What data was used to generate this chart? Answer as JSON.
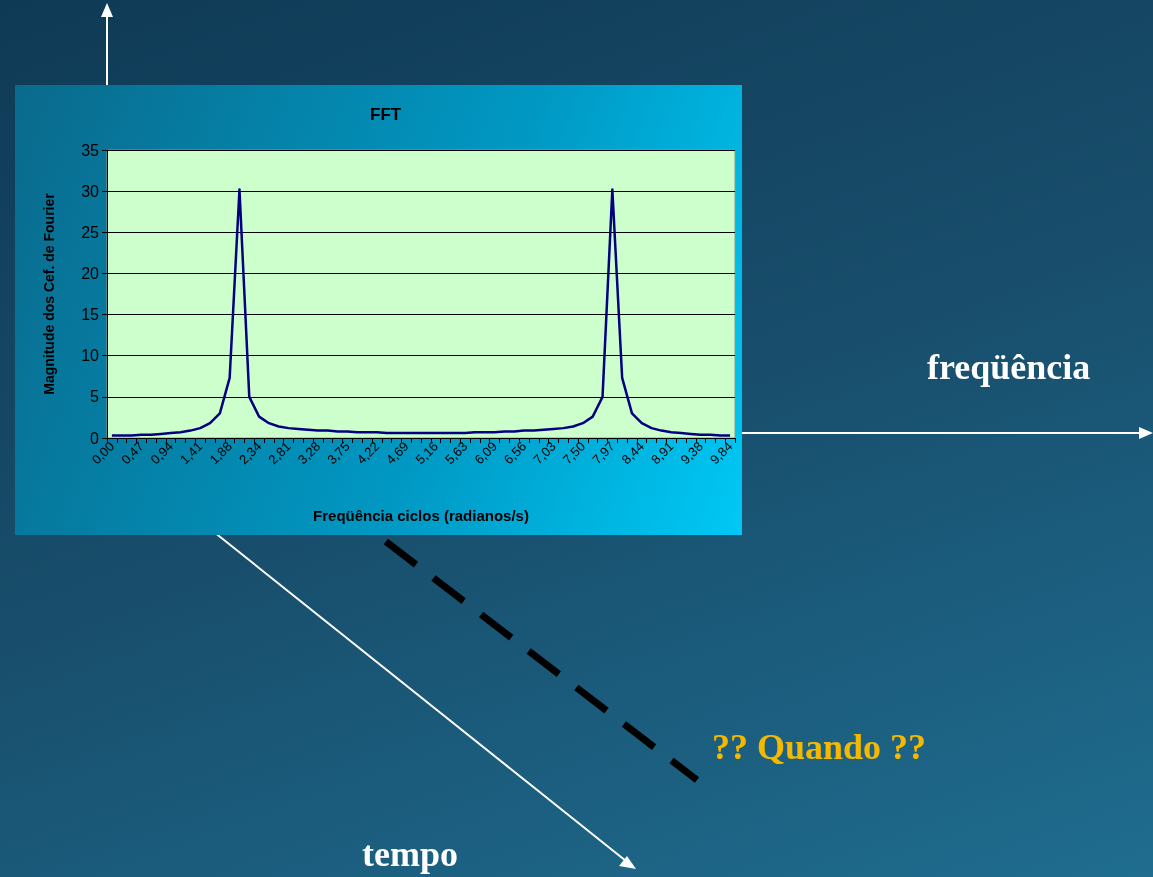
{
  "chart_data": {
    "type": "line",
    "title": "FFT",
    "xlabel": "Freqüência ciclos (radianos/s)",
    "ylabel": "Magnitude dos Cef. de Fourier",
    "categories": [
      "0,00",
      null,
      null,
      "0,47",
      null,
      null,
      "0,94",
      null,
      null,
      "1,41",
      null,
      null,
      "1,88",
      null,
      null,
      "2,34",
      null,
      null,
      "2,81",
      null,
      null,
      "3,28",
      null,
      null,
      "3,75",
      null,
      null,
      "4,22",
      null,
      null,
      "4,69",
      null,
      null,
      "5,16",
      null,
      null,
      "5,63",
      null,
      null,
      "6,09",
      null,
      null,
      "6,56",
      null,
      null,
      "7,03",
      null,
      null,
      "7,50",
      null,
      null,
      "7,97",
      null,
      null,
      "8,44",
      null,
      null,
      "8,91",
      null,
      null,
      "9,38",
      null,
      null,
      "9,84"
    ],
    "series": [
      {
        "color": "#000080",
        "values": [
          0.3,
          0.3,
          0.3,
          0.4,
          0.4,
          0.5,
          0.6,
          0.7,
          0.9,
          1.2,
          1.8,
          3.0,
          7.3,
          30.2,
          5.0,
          2.6,
          1.8,
          1.4,
          1.2,
          1.1,
          1.0,
          0.9,
          0.9,
          0.8,
          0.8,
          0.7,
          0.7,
          0.7,
          0.6,
          0.6,
          0.6,
          0.6,
          0.6,
          0.6,
          0.6,
          0.6,
          0.6,
          0.7,
          0.7,
          0.7,
          0.8,
          0.8,
          0.9,
          0.9,
          1.0,
          1.1,
          1.2,
          1.4,
          1.8,
          2.6,
          5.0,
          30.2,
          7.3,
          3.0,
          1.8,
          1.2,
          0.9,
          0.7,
          0.6,
          0.5,
          0.4,
          0.4,
          0.3,
          0.3
        ]
      }
    ],
    "ylim": [
      0,
      35
    ],
    "yticks": [
      0,
      5,
      10,
      15,
      20,
      25,
      30,
      35
    ],
    "grid": "y",
    "marker": "none",
    "line_style": "solid",
    "annotations": [
      "freqüência",
      "?? Quando ??",
      "tempo"
    ]
  }
}
